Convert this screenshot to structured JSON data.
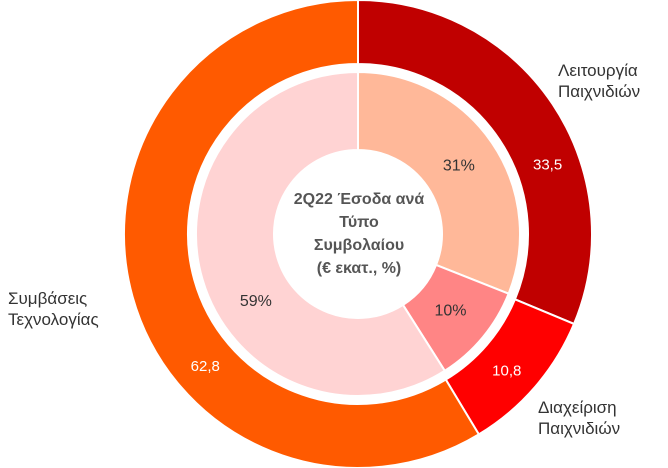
{
  "chart_data": {
    "type": "pie",
    "title_lines": [
      "2Q22 Έσοδα ανά",
      "Τύπο",
      "Συμβολαίου",
      "(€ εκατ., %)"
    ],
    "categories": [
      "Λειτουργία Παιχνιδιών",
      "Διαχείριση Παιχνιδιών",
      "Συμβάσεις Τεχνολογίας"
    ],
    "series": [
      {
        "values": [
          33.5,
          10.8,
          62.8
        ],
        "value_labels": [
          "33,5",
          "10,8",
          "62,8"
        ],
        "colors": [
          "#c00000",
          "#ff0000",
          "#ff5a00"
        ]
      },
      {
        "values": [
          31,
          10,
          59
        ],
        "value_labels": [
          "31%",
          "10%",
          "59%"
        ],
        "colors": [
          "#ffb899",
          "#ff8585",
          "#ffd3d3"
        ]
      }
    ],
    "external_labels": [
      [
        "Λειτουργία",
        "Παιχνιδιών"
      ],
      [
        "Διαχείριση",
        "Παιχνιδιών"
      ],
      [
        "Συμβάσεις",
        "Τεχνολογίας"
      ]
    ]
  }
}
